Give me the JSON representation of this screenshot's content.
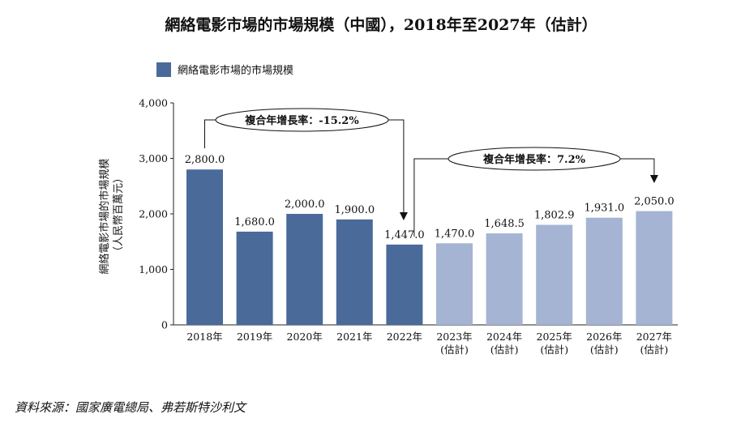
{
  "chart_data": {
    "type": "bar",
    "title": "網絡電影市場的市場規模（中國），2018年至2027年（估計）",
    "legend": [
      "網絡電影市場的市場規模"
    ],
    "ylabel_line1": "網絡電影市場的市場規模",
    "ylabel_line2": "（人民幣百萬元）",
    "ylim": [
      0,
      4000
    ],
    "yticks": [
      0,
      1000,
      2000,
      3000,
      4000
    ],
    "ytick_labels": [
      "0",
      "1,000",
      "2,000",
      "3,000",
      "4,000"
    ],
    "categories": [
      [
        "2018年"
      ],
      [
        "2019年"
      ],
      [
        "2020年"
      ],
      [
        "2021年"
      ],
      [
        "2022年"
      ],
      [
        "2023年",
        "(估計)"
      ],
      [
        "2024年",
        "(估計)"
      ],
      [
        "2025年",
        "(估計)"
      ],
      [
        "2026年",
        "(估計)"
      ],
      [
        "2027年",
        "(估計)"
      ]
    ],
    "values": [
      2800.0,
      1680.0,
      2000.0,
      1900.0,
      1447.0,
      1470.0,
      1648.5,
      1802.9,
      1931.0,
      2050.0
    ],
    "value_labels": [
      "2,800.0",
      "1,680.0",
      "2,000.0",
      "1,900.0",
      "1,447.0",
      "1,470.0",
      "1,648.5",
      "1,802.9",
      "1,931.0",
      "2,050.0"
    ],
    "historical_color": "#4a6a9a",
    "forecast_color": "#a4b4d2",
    "forecast_start_index": 5,
    "annotations": [
      {
        "text": "複合年增長率：-15.2%",
        "from_index": 0,
        "to_index": 4
      },
      {
        "text": "複合年增長率：7.2%",
        "from_index": 4,
        "to_index": 9
      }
    ]
  },
  "source": "資料來源：國家廣電總局、弗若斯特沙利文"
}
